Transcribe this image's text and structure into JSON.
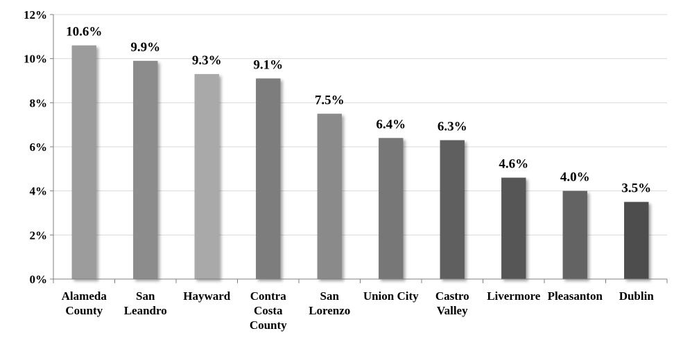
{
  "chart_data": {
    "type": "bar",
    "title": "",
    "xlabel": "",
    "ylabel": "",
    "ylim": [
      0,
      12
    ],
    "y_ticks": [
      "0%",
      "2%",
      "4%",
      "6%",
      "8%",
      "10%",
      "12%"
    ],
    "grid": true,
    "legend": "none",
    "categories": [
      [
        "Alameda",
        "County"
      ],
      [
        "San",
        "Leandro"
      ],
      [
        "Hayward"
      ],
      [
        "Contra",
        "Costa",
        "County"
      ],
      [
        "San",
        "Lorenzo"
      ],
      [
        "Union City"
      ],
      [
        "Castro",
        "Valley"
      ],
      [
        "Livermore"
      ],
      [
        "Pleasanton"
      ],
      [
        "Dublin"
      ]
    ],
    "values": [
      10.6,
      9.9,
      9.3,
      9.1,
      7.5,
      6.4,
      6.3,
      4.6,
      4.0,
      3.5
    ],
    "data_labels": [
      "10.6%",
      "9.9%",
      "9.3%",
      "9.1%",
      "7.5%",
      "6.4%",
      "6.3%",
      "4.6%",
      "4.0%",
      "3.5%"
    ],
    "bar_colors": [
      "#9c9c9c",
      "#8c8c8c",
      "#a9a9a9",
      "#7d7d7d",
      "#8a8a8a",
      "#777777",
      "#5f5f5f",
      "#575757",
      "#636363",
      "#4e4e4e"
    ]
  }
}
